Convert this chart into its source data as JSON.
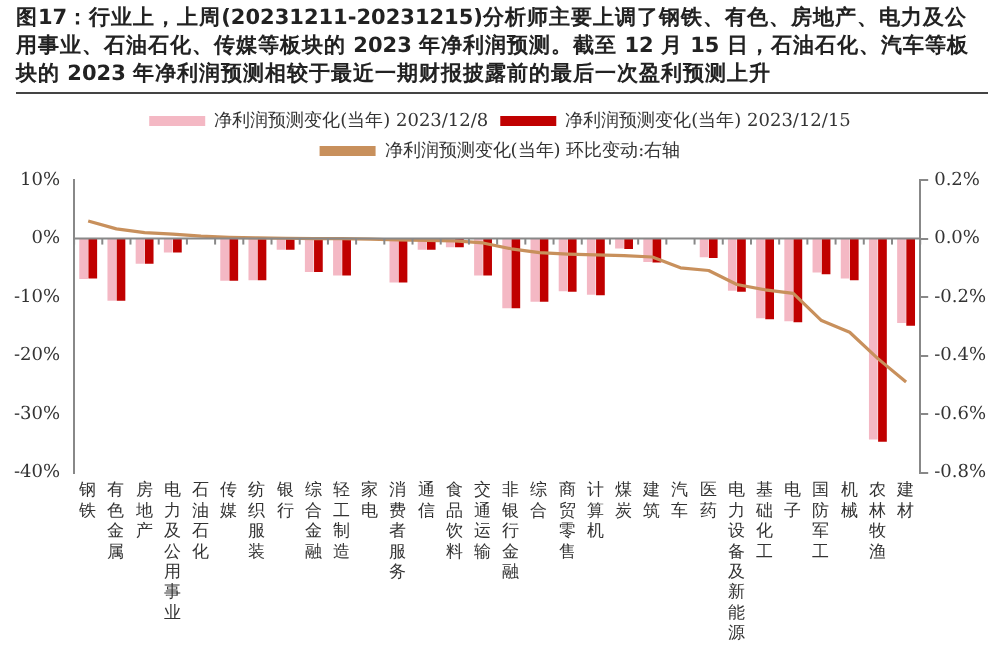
{
  "chart_data": {
    "type": "bar",
    "title": "图17：行业上，上周(20231211-20231215)分析师主要上调了钢铁、有色、房地产、电力及公用事业、石油石化、传媒等板块的 2023 年净利润预测。截至 12 月 15 日，石油石化、汽车等板块的 2023 年净利润预测相较于最近一期财报披露前的最后一次盈利预测上升",
    "categories": [
      "钢铁",
      "有色金属",
      "房地产",
      "电力及公用事业",
      "石油石化",
      "传媒",
      "纺织服装",
      "银行",
      "综合金融",
      "轻工制造",
      "家电",
      "消费者服务",
      "通信",
      "食品饮料",
      "交通运输",
      "非银行金融",
      "综合",
      "商贸零售",
      "计算机",
      "煤炭",
      "建筑",
      "汽车",
      "医药",
      "电力设备及新能源",
      "基础化工",
      "电子",
      "国防军工",
      "机械",
      "农林牧渔",
      "建材"
    ],
    "series": [
      {
        "name": "净利润预测变化(当年) 2023/12/8",
        "color": "#f4b8c4",
        "values": [
          -6.9,
          -10.6,
          -4.3,
          -2.4,
          0,
          -7.2,
          -7.1,
          -1.9,
          -5.7,
          -6.3,
          null,
          -7.5,
          -1.9,
          -1.5,
          -6.3,
          -11.9,
          -10.8,
          -9.0,
          -9.6,
          -1.7,
          -4.0,
          null,
          -3.2,
          -8.9,
          -13.6,
          -14.1,
          -5.8,
          -6.8,
          -34.3,
          -14.4
        ]
      },
      {
        "name": "净利润预测变化(当年) 2023/12/15",
        "color": "#c00000",
        "values": [
          -6.8,
          -10.6,
          -4.3,
          -2.4,
          0,
          -7.2,
          -7.1,
          -1.9,
          -5.7,
          -6.3,
          null,
          -7.5,
          -1.9,
          -1.5,
          -6.3,
          -11.9,
          -10.8,
          -9.1,
          -9.7,
          -1.8,
          -4.1,
          0,
          -3.3,
          -9.1,
          -13.8,
          -14.3,
          -6.1,
          -7.1,
          -34.7,
          -14.9
        ]
      },
      {
        "name": "净利润预测变化(当年) 环比变动:右轴",
        "type": "line",
        "axis": "y2",
        "color": "#c8905c",
        "values": [
          0.06,
          0.033,
          0.02,
          0.015,
          0.008,
          0.004,
          0.002,
          0.001,
          0,
          0,
          -0.002,
          -0.005,
          -0.006,
          -0.008,
          -0.015,
          -0.035,
          -0.048,
          -0.053,
          -0.056,
          -0.058,
          -0.063,
          -0.1,
          -0.109,
          -0.157,
          -0.175,
          -0.187,
          -0.28,
          -0.32,
          -0.41,
          -0.49
        ]
      }
    ],
    "ylim": [
      -40,
      10
    ],
    "yticks": [
      {
        "value": 10,
        "label": "10%"
      },
      {
        "value": 0,
        "label": "0%"
      },
      {
        "value": -10,
        "label": "-10%"
      },
      {
        "value": -20,
        "label": "-20%"
      },
      {
        "value": -30,
        "label": "-30%"
      },
      {
        "value": -40,
        "label": "-40%"
      }
    ],
    "y2lim": [
      -0.8,
      0.2
    ],
    "y2ticks": [
      {
        "value": 0.2,
        "label": "0.2%"
      },
      {
        "value": 0,
        "label": "0.0%"
      },
      {
        "value": -0.2,
        "label": "-0.2%"
      },
      {
        "value": -0.4,
        "label": "-0.4%"
      },
      {
        "value": -0.6,
        "label": "-0.6%"
      },
      {
        "value": -0.8,
        "label": "-0.8%"
      }
    ],
    "legend": "top",
    "marker": "none"
  }
}
